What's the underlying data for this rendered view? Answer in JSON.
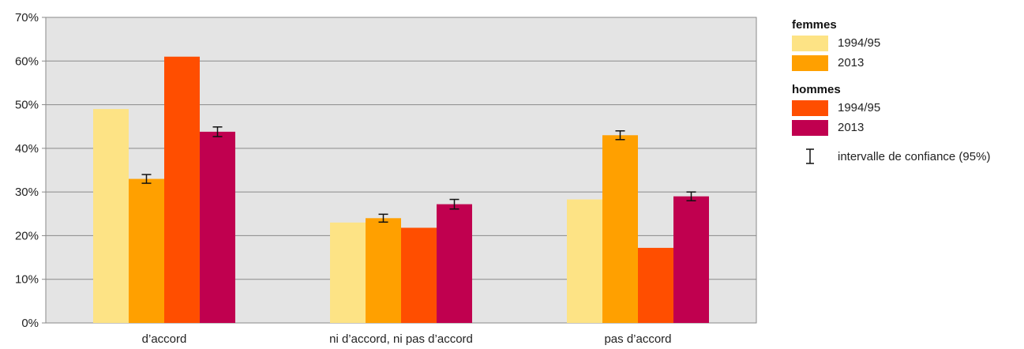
{
  "chart_data": {
    "type": "bar",
    "categories": [
      "d’accord",
      "ni d’accord, ni pas d’accord",
      "pas d’accord"
    ],
    "ylim": [
      0,
      70
    ],
    "yticks": [
      "0%",
      "10%",
      "20%",
      "30%",
      "40%",
      "50%",
      "60%",
      "70%"
    ],
    "grid": true,
    "series": [
      {
        "group": "femmes",
        "name": "1994/95",
        "color": "#FDE385",
        "values": [
          49,
          23,
          28.3
        ],
        "error": null
      },
      {
        "group": "femmes",
        "name": "2013",
        "color": "#FFA000",
        "values": [
          33,
          24,
          43
        ],
        "error": [
          1.0,
          0.9,
          1.0
        ]
      },
      {
        "group": "hommes",
        "name": "1994/95",
        "color": "#FF4E00",
        "values": [
          61,
          21.8,
          17.2
        ],
        "error": null
      },
      {
        "group": "hommes",
        "name": "2013",
        "color": "#C0004F",
        "values": [
          43.8,
          27.2,
          29
        ],
        "error": [
          1.1,
          1.1,
          1.0
        ]
      }
    ]
  },
  "legend": {
    "groups": [
      {
        "title": "femmes",
        "items": [
          {
            "label": "1994/95",
            "color": "#FDE385"
          },
          {
            "label": "2013",
            "color": "#FFA000"
          }
        ]
      },
      {
        "title": "hommes",
        "items": [
          {
            "label": "1994/95",
            "color": "#FF4E00"
          },
          {
            "label": "2013",
            "color": "#C0004F"
          }
        ]
      }
    ],
    "ci_label": "intervalle de confiance (95%)"
  }
}
